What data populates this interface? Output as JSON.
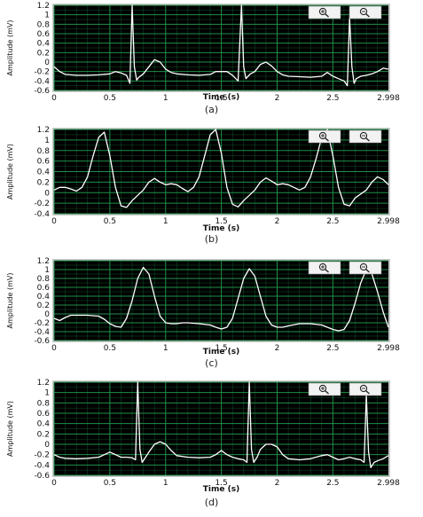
{
  "colors": {
    "plot_bg": "#000000",
    "grid": "#1f8f4a",
    "trace": "#ffffff",
    "frame": "#c8c8c8"
  },
  "zoom_buttons": [
    {
      "name": "zoom-in",
      "icon": "zoom-in-icon"
    },
    {
      "name": "zoom-out",
      "icon": "zoom-out-icon"
    }
  ],
  "chart_data": [
    {
      "type": "line",
      "caption": "(a)",
      "xlabel": "Time (s)",
      "ylabel": "Amplitude (mV)",
      "xlim": [
        0,
        2.998
      ],
      "ylim": [
        -0.6,
        1.2
      ],
      "x_ticks": [
        "0",
        "0.5",
        "1",
        "1.5",
        "2",
        "2.5",
        "2.998"
      ],
      "y_ticks": [
        "-0.6",
        "-0.4",
        "-0.2",
        "0",
        "0.2",
        "0.4",
        "0.6",
        "0.8",
        "1",
        "1.2"
      ],
      "grid": true,
      "series": [
        {
          "x": [
            0,
            0.05,
            0.1,
            0.2,
            0.3,
            0.4,
            0.5,
            0.55,
            0.6,
            0.65,
            0.68,
            0.7,
            0.72,
            0.74,
            0.76,
            0.8,
            0.85,
            0.9,
            0.95,
            1.0,
            1.05,
            1.1,
            1.2,
            1.3,
            1.4,
            1.45,
            1.55,
            1.6,
            1.65,
            1.68,
            1.7,
            1.72,
            1.74,
            1.76,
            1.8,
            1.85,
            1.9,
            1.95,
            2.0,
            2.05,
            2.1,
            2.2,
            2.3,
            2.4,
            2.45,
            2.5,
            2.55,
            2.6,
            2.63,
            2.65,
            2.67,
            2.69,
            2.71,
            2.75,
            2.8,
            2.85,
            2.9,
            2.95,
            2.998
          ],
          "y": [
            -0.1,
            -0.2,
            -0.26,
            -0.28,
            -0.28,
            -0.27,
            -0.25,
            -0.2,
            -0.23,
            -0.28,
            -0.45,
            1.2,
            -0.1,
            -0.38,
            -0.32,
            -0.25,
            -0.1,
            0.05,
            0.0,
            -0.15,
            -0.22,
            -0.25,
            -0.27,
            -0.28,
            -0.26,
            -0.2,
            -0.2,
            -0.28,
            -0.4,
            1.2,
            -0.1,
            -0.35,
            -0.3,
            -0.25,
            -0.2,
            -0.05,
            0.0,
            -0.08,
            -0.2,
            -0.27,
            -0.3,
            -0.31,
            -0.32,
            -0.3,
            -0.22,
            -0.3,
            -0.35,
            -0.4,
            -0.5,
            0.95,
            -0.1,
            -0.45,
            -0.35,
            -0.3,
            -0.28,
            -0.25,
            -0.2,
            -0.13,
            -0.15
          ]
        }
      ]
    },
    {
      "type": "line",
      "caption": "(b)",
      "xlabel": "Time (s)",
      "ylabel": "Amplitude (mV)",
      "xlim": [
        0,
        2.998
      ],
      "ylim": [
        -0.4,
        1.2
      ],
      "x_ticks": [
        "0",
        "0.5",
        "1",
        "1.5",
        "2",
        "2.5",
        "2.998"
      ],
      "y_ticks": [
        "-0.4",
        "-0.2",
        "0",
        "0.2",
        "0.4",
        "0.6",
        "0.8",
        "1",
        "1.2"
      ],
      "grid": true,
      "series": [
        {
          "x": [
            0,
            0.05,
            0.1,
            0.15,
            0.2,
            0.25,
            0.3,
            0.35,
            0.4,
            0.45,
            0.5,
            0.55,
            0.6,
            0.65,
            0.7,
            0.8,
            0.85,
            0.9,
            0.95,
            1.0,
            1.05,
            1.1,
            1.15,
            1.2,
            1.25,
            1.3,
            1.35,
            1.4,
            1.45,
            1.5,
            1.55,
            1.6,
            1.65,
            1.7,
            1.8,
            1.85,
            1.9,
            1.95,
            2.0,
            2.05,
            2.1,
            2.15,
            2.2,
            2.25,
            2.3,
            2.35,
            2.4,
            2.45,
            2.5,
            2.55,
            2.6,
            2.65,
            2.7,
            2.8,
            2.85,
            2.9,
            2.95,
            2.998
          ],
          "y": [
            0.05,
            0.1,
            0.1,
            0.07,
            0.03,
            0.1,
            0.3,
            0.7,
            1.05,
            1.15,
            0.7,
            0.1,
            -0.25,
            -0.28,
            -0.15,
            0.05,
            0.2,
            0.27,
            0.2,
            0.15,
            0.17,
            0.15,
            0.08,
            0.02,
            0.1,
            0.3,
            0.7,
            1.1,
            1.2,
            0.75,
            0.1,
            -0.22,
            -0.27,
            -0.15,
            0.05,
            0.2,
            0.28,
            0.22,
            0.15,
            0.17,
            0.15,
            0.1,
            0.05,
            0.1,
            0.3,
            0.65,
            1.05,
            1.2,
            0.7,
            0.1,
            -0.22,
            -0.25,
            -0.1,
            0.05,
            0.2,
            0.3,
            0.25,
            0.15
          ]
        }
      ]
    },
    {
      "type": "line",
      "caption": "(c)",
      "xlabel": "Time (s)",
      "ylabel": "Amplitude (mV)",
      "xlim": [
        0,
        2.998
      ],
      "ylim": [
        -0.6,
        1.2
      ],
      "x_ticks": [
        "0",
        "0.5",
        "1",
        "1.5",
        "2",
        "2.5",
        "2.998"
      ],
      "y_ticks": [
        "-0.6",
        "-0.4",
        "-0.2",
        "0",
        "0.2",
        "0.4",
        "0.6",
        "0.8",
        "1",
        "1.2"
      ],
      "grid": true,
      "series": [
        {
          "x": [
            0,
            0.05,
            0.1,
            0.15,
            0.2,
            0.3,
            0.4,
            0.45,
            0.5,
            0.55,
            0.6,
            0.65,
            0.7,
            0.75,
            0.8,
            0.85,
            0.9,
            0.95,
            1.0,
            1.05,
            1.1,
            1.15,
            1.2,
            1.3,
            1.4,
            1.45,
            1.5,
            1.55,
            1.6,
            1.65,
            1.7,
            1.75,
            1.8,
            1.85,
            1.9,
            1.95,
            2.0,
            2.05,
            2.1,
            2.2,
            2.3,
            2.4,
            2.45,
            2.5,
            2.55,
            2.6,
            2.65,
            2.7,
            2.75,
            2.8,
            2.85,
            2.9,
            2.95,
            2.998
          ],
          "y": [
            -0.1,
            -0.15,
            -0.08,
            -0.03,
            -0.03,
            -0.03,
            -0.05,
            -0.12,
            -0.22,
            -0.28,
            -0.3,
            -0.1,
            0.3,
            0.8,
            1.05,
            0.9,
            0.4,
            -0.05,
            -0.2,
            -0.22,
            -0.22,
            -0.2,
            -0.2,
            -0.22,
            -0.25,
            -0.3,
            -0.34,
            -0.3,
            -0.1,
            0.35,
            0.8,
            1.02,
            0.85,
            0.4,
            -0.05,
            -0.25,
            -0.3,
            -0.3,
            -0.27,
            -0.22,
            -0.22,
            -0.25,
            -0.3,
            -0.35,
            -0.38,
            -0.35,
            -0.15,
            0.25,
            0.7,
            1.0,
            0.9,
            0.5,
            0.05,
            -0.3
          ]
        }
      ]
    },
    {
      "type": "line",
      "caption": "(d)",
      "xlabel": "Time (s)",
      "ylabel": "Amplitude (mV)",
      "xlim": [
        0,
        2.998
      ],
      "ylim": [
        -0.6,
        1.2
      ],
      "x_ticks": [
        "0",
        "0.5",
        "1",
        "1.5",
        "2",
        "2.5",
        "2.998"
      ],
      "y_ticks": [
        "-0.6",
        "-0.4",
        "-0.2",
        "0",
        "0.2",
        "0.4",
        "0.6",
        "0.8",
        "1",
        "1.2"
      ],
      "grid": true,
      "series": [
        {
          "x": [
            0,
            0.05,
            0.1,
            0.2,
            0.3,
            0.4,
            0.45,
            0.5,
            0.55,
            0.6,
            0.65,
            0.7,
            0.73,
            0.75,
            0.77,
            0.79,
            0.82,
            0.85,
            0.9,
            0.95,
            1.0,
            1.05,
            1.1,
            1.2,
            1.3,
            1.4,
            1.45,
            1.5,
            1.55,
            1.6,
            1.65,
            1.7,
            1.73,
            1.75,
            1.77,
            1.79,
            1.82,
            1.85,
            1.9,
            1.95,
            2.0,
            2.05,
            2.1,
            2.2,
            2.3,
            2.4,
            2.45,
            2.5,
            2.55,
            2.6,
            2.65,
            2.7,
            2.75,
            2.78,
            2.8,
            2.82,
            2.84,
            2.87,
            2.9,
            2.95,
            2.998
          ],
          "y": [
            -0.2,
            -0.25,
            -0.27,
            -0.28,
            -0.27,
            -0.25,
            -0.2,
            -0.15,
            -0.2,
            -0.25,
            -0.25,
            -0.26,
            -0.3,
            1.2,
            -0.1,
            -0.35,
            -0.25,
            -0.15,
            0.0,
            0.05,
            0.0,
            -0.12,
            -0.22,
            -0.25,
            -0.26,
            -0.25,
            -0.2,
            -0.12,
            -0.2,
            -0.25,
            -0.28,
            -0.3,
            -0.35,
            1.2,
            -0.1,
            -0.35,
            -0.25,
            -0.1,
            0.0,
            0.0,
            -0.05,
            -0.2,
            -0.28,
            -0.3,
            -0.28,
            -0.22,
            -0.2,
            -0.25,
            -0.3,
            -0.28,
            -0.25,
            -0.28,
            -0.3,
            -0.35,
            0.95,
            -0.15,
            -0.45,
            -0.35,
            -0.32,
            -0.28,
            -0.22
          ]
        }
      ]
    }
  ]
}
